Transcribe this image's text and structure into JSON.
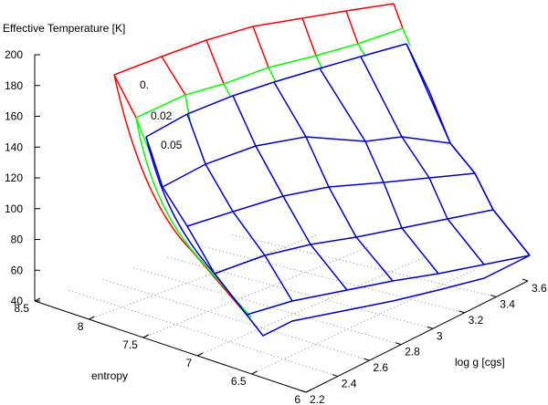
{
  "chart_data": {
    "type": "surface3d",
    "zlabel": "Effective Temperature [K]",
    "xlabel": "entropy",
    "ylabel": "log g [cgs]",
    "zticks": [
      "200",
      "180",
      "160",
      "140",
      "120",
      "100",
      "80",
      "60",
      "40"
    ],
    "xticks": [
      "8.5",
      "8",
      "7.5",
      "7",
      "6.5",
      "6"
    ],
    "yticks": [
      "2.2",
      "2.4",
      "2.6",
      "2.8",
      "3",
      "3.2",
      "3.4",
      "3.6"
    ],
    "grid": true,
    "colors": {
      "red": "#ff0000",
      "green": "#00ff00",
      "blue": "#0000cc"
    },
    "series": [
      {
        "name": "0.",
        "color": "#ff0000",
        "u": [
          0,
          0.025,
          0.05,
          0.15,
          0.35,
          0.55,
          0.8,
          1
        ],
        "rows": [
          [
            [
              125,
              82
            ],
            [
              177,
              62
            ],
            [
              226,
              44
            ],
            [
              277,
              29
            ],
            [
              331,
              20
            ],
            [
              379,
              12
            ],
            [
              431,
              4
            ]
          ],
          [
            [
              149,
              129
            ],
            [
              203,
              104
            ],
            [
              245,
              92
            ],
            [
              294,
              74
            ],
            [
              346,
              61
            ],
            [
              392,
              48
            ],
            [
              441,
              31
            ]
          ],
          [
            [
              164,
              167
            ],
            [
              208,
              132
            ],
            [
              252,
              105
            ],
            [
              302,
              90
            ],
            [
              353,
              76
            ],
            [
              400,
              62
            ],
            [
              449,
              50
            ]
          ]
        ]
      },
      {
        "name": "0.02",
        "color": "#00ff00"
      },
      {
        "name": "0.05",
        "color": "#0000cc",
        "rows": [
          [
            [
              160,
              150
            ],
            [
              205,
              125
            ],
            [
              255,
              105
            ],
            [
              300,
              90
            ],
            [
              350,
              75
            ],
            [
              395,
              62
            ],
            [
              445,
              48
            ]
          ],
          [
            [
              178,
              205
            ],
            [
              225,
              180
            ],
            [
              280,
              160
            ],
            [
              335,
              150
            ],
            [
              400,
              155
            ],
            [
              440,
              150
            ],
            [
              493,
              157
            ]
          ],
          [
            [
              205,
              248
            ],
            [
              255,
              232
            ],
            [
              310,
              215
            ],
            [
              360,
              205
            ],
            [
              420,
              200
            ],
            [
              470,
              195
            ],
            [
              520,
              190
            ]
          ],
          [
            [
              235,
              300
            ],
            [
              290,
              280
            ],
            [
              340,
              268
            ],
            [
              390,
              260
            ],
            [
              440,
              250
            ],
            [
              490,
              240
            ],
            [
              540,
              230
            ]
          ],
          [
            [
              270,
              345
            ],
            [
              320,
              330
            ],
            [
              380,
              318
            ],
            [
              430,
              308
            ],
            [
              480,
              300
            ],
            [
              530,
              290
            ],
            [
              580,
              280
            ]
          ]
        ]
      }
    ]
  }
}
